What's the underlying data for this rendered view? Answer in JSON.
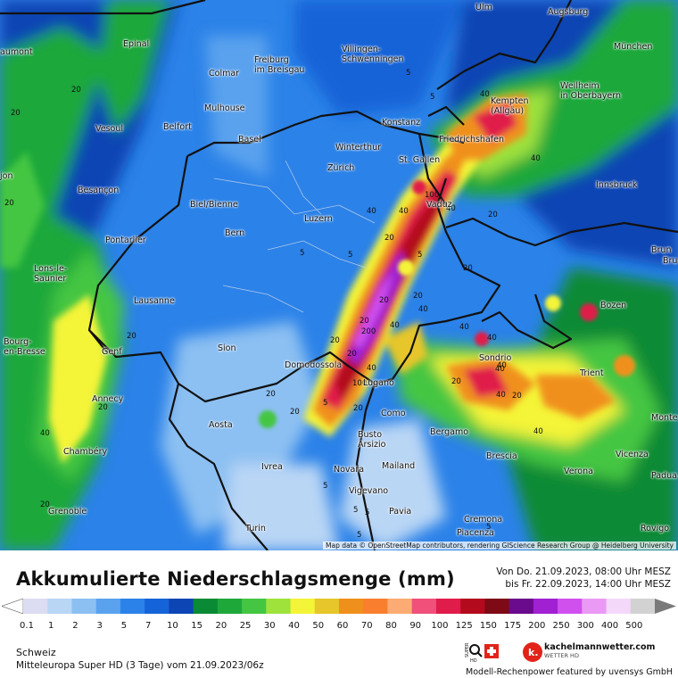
{
  "map": {
    "cities": [
      {
        "name": "Ulm"
      },
      {
        "name": "Augsburg"
      },
      {
        "name": "Epinal"
      },
      {
        "name": "aumont"
      },
      {
        "name": "Freiburg\nim Breisgau"
      },
      {
        "name": "Villingen-\nSchwenningen"
      },
      {
        "name": "München"
      },
      {
        "name": "Colmar"
      },
      {
        "name": "Weilheim\nin Oberbayern"
      },
      {
        "name": "Kempten\n(Allgäu)"
      },
      {
        "name": "Mulhouse"
      },
      {
        "name": "Konstanz"
      },
      {
        "name": "Vesoul"
      },
      {
        "name": "Belfort"
      },
      {
        "name": "Basel"
      },
      {
        "name": "Friedrichshafen"
      },
      {
        "name": "Winterthur"
      },
      {
        "name": "jon"
      },
      {
        "name": "Zürich"
      },
      {
        "name": "St. Gallen"
      },
      {
        "name": "Innsbruck"
      },
      {
        "name": "Besançon"
      },
      {
        "name": "Biel/Bienne"
      },
      {
        "name": "Vaduz"
      },
      {
        "name": "Luzern"
      },
      {
        "name": "Pontarlier"
      },
      {
        "name": "Bern"
      },
      {
        "name": "Brun"
      },
      {
        "name": "Bru"
      },
      {
        "name": "Lons-le-\nSaunier"
      },
      {
        "name": "Lausanne"
      },
      {
        "name": "Bozen"
      },
      {
        "name": "Bourg-\nen-Bresse"
      },
      {
        "name": "Sion"
      },
      {
        "name": "Genf"
      },
      {
        "name": "Sondrio"
      },
      {
        "name": "Domodossola"
      },
      {
        "name": "Trient"
      },
      {
        "name": "Lugano"
      },
      {
        "name": "Annecy"
      },
      {
        "name": "Aosta"
      },
      {
        "name": "Como"
      },
      {
        "name": "Monte"
      },
      {
        "name": "Bergamo"
      },
      {
        "name": "Busto\nArsizio"
      },
      {
        "name": "Chambéry"
      },
      {
        "name": "Brescia"
      },
      {
        "name": "Vicenza"
      },
      {
        "name": "Ivrea"
      },
      {
        "name": "Novara"
      },
      {
        "name": "Mailand"
      },
      {
        "name": "Verona"
      },
      {
        "name": "Padua"
      },
      {
        "name": "Vigevano"
      },
      {
        "name": "Grenoble"
      },
      {
        "name": "Pavia"
      },
      {
        "name": "Cremona"
      },
      {
        "name": "Turin"
      },
      {
        "name": "Piacenza"
      },
      {
        "name": "Rovigo"
      }
    ],
    "contour_labels": [
      "20",
      "20",
      "20",
      "20",
      "20",
      "5",
      "5",
      "5",
      "40",
      "40",
      "40",
      "40",
      "100",
      "40",
      "20",
      "20",
      "20",
      "5",
      "5",
      "20",
      "20",
      "20",
      "20",
      "20",
      "200",
      "40",
      "40",
      "40",
      "40",
      "40",
      "20",
      "20",
      "100",
      "20",
      "20",
      "40",
      "20",
      "40",
      "20",
      "40",
      "40",
      "40",
      "5",
      "5",
      "5",
      "5",
      "5",
      "5"
    ],
    "attribution": "Map data © OpenStreetMap contributors, rendering GIScience Research Group @ Heidelberg University"
  },
  "legend": {
    "title": "Akkumulierte Niederschlagsmenge (mm)",
    "period_from": "Von Do. 21.09.2023, 08:00 Uhr MESZ",
    "period_to": "bis Fr. 22.09.2023, 14:00 Uhr MESZ",
    "scale": [
      {
        "label": "0.1",
        "color": "#dcdcf2"
      },
      {
        "label": "1",
        "color": "#b9d6f5"
      },
      {
        "label": "2",
        "color": "#8cc0f2"
      },
      {
        "label": "3",
        "color": "#5aa2ee"
      },
      {
        "label": "5",
        "color": "#2b82e8"
      },
      {
        "label": "7",
        "color": "#1563d8"
      },
      {
        "label": "10",
        "color": "#0d45b4"
      },
      {
        "label": "15",
        "color": "#0a8a34"
      },
      {
        "label": "20",
        "color": "#1fa83a"
      },
      {
        "label": "25",
        "color": "#45c642"
      },
      {
        "label": "30",
        "color": "#9fe23c"
      },
      {
        "label": "40",
        "color": "#f4f438"
      },
      {
        "label": "50",
        "color": "#e6c62a"
      },
      {
        "label": "60",
        "color": "#f0901c"
      },
      {
        "label": "70",
        "color": "#f97f2e"
      },
      {
        "label": "80",
        "color": "#fcab74"
      },
      {
        "label": "90",
        "color": "#f0507a"
      },
      {
        "label": "100",
        "color": "#e01c4a"
      },
      {
        "label": "125",
        "color": "#b40a1e"
      },
      {
        "label": "150",
        "color": "#7e0a16"
      },
      {
        "label": "175",
        "color": "#6a0a8c"
      },
      {
        "label": "200",
        "color": "#a020d2"
      },
      {
        "label": "250",
        "color": "#d050ee"
      },
      {
        "label": "300",
        "color": "#ea9af4"
      },
      {
        "label": "400",
        "color": "#f4d8fa"
      },
      {
        "label": "500",
        "color": "#d2d2d2"
      }
    ],
    "region": "Schweiz",
    "model": "Mitteleuropa Super HD (3 Tage) vom 21.09.2023/06z",
    "brand": "kachelmannwetter.com",
    "brand_sub": "WETTER HD",
    "powered": "Modell-Rechenpower featured by uvensys GmbH",
    "logo_super": "SUPER",
    "logo_hd": "HD",
    "logo_k": "k."
  }
}
